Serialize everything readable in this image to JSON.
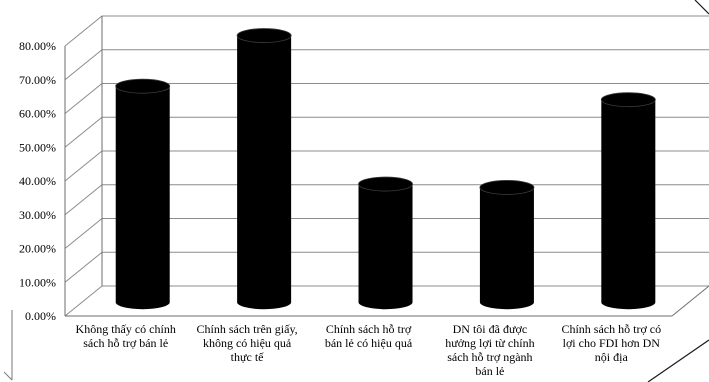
{
  "chart_data": {
    "type": "bar",
    "style": "3d-cylinder",
    "categories": [
      [
        "Không thấy có chính",
        "sách hỗ trợ bán lẻ"
      ],
      [
        "Chính sách trên giấy,",
        "không có hiệu quả",
        "thực tế"
      ],
      [
        "Chính sách hỗ trợ",
        "bán lẻ có hiệu quả"
      ],
      [
        "DN tôi đã được",
        "hưởng lợi từ chính",
        "sách hỗ trợ ngành",
        "bán lẻ"
      ],
      [
        "Chính sách hỗ trợ có",
        "lợi cho FDI hơn DN",
        "nội địa"
      ]
    ],
    "values": [
      0.64,
      0.79,
      0.35,
      0.34,
      0.6
    ],
    "ylim": [
      0,
      0.8
    ],
    "yticks": [
      "0.00%",
      "10.00%",
      "20.00%",
      "30.00%",
      "40.00%",
      "50.00%",
      "60.00%",
      "70.00%",
      "80.00%"
    ],
    "bar_color": "#000000",
    "grid": true,
    "title": "",
    "xlabel": "",
    "ylabel": ""
  }
}
